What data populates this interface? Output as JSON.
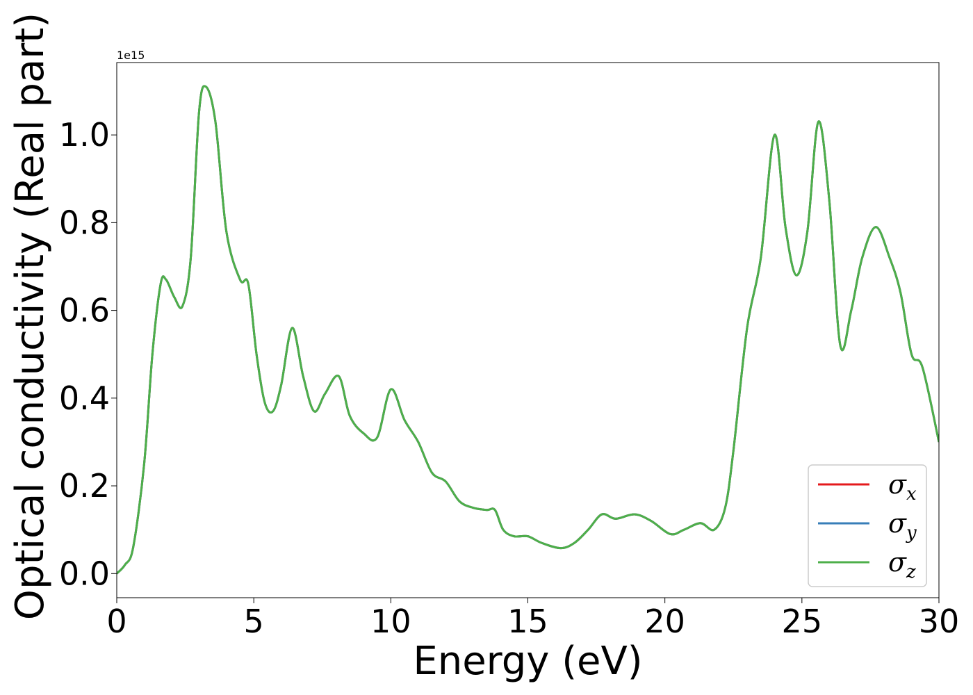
{
  "chart_data": {
    "type": "line",
    "title": "",
    "xlabel": "Energy (eV)",
    "ylabel": "Optical conductivity (Real part)",
    "y_offset_label": "1e15",
    "xlim": [
      0,
      30
    ],
    "ylim": [
      -0.055,
      1.165
    ],
    "x_ticks": [
      0,
      5,
      10,
      15,
      20,
      25,
      30
    ],
    "x_tick_labels": [
      "0",
      "5",
      "10",
      "15",
      "20",
      "25",
      "30"
    ],
    "y_ticks": [
      0.0,
      0.2,
      0.4,
      0.6,
      0.8,
      1.0
    ],
    "y_tick_labels": [
      "0.0",
      "0.2",
      "0.4",
      "0.6",
      "0.8",
      "1.0"
    ],
    "grid": false,
    "legend_position": "lower-right",
    "x": [
      0,
      0.3,
      0.6,
      1.0,
      1.3,
      1.6,
      1.8,
      2.1,
      2.4,
      2.7,
      3.0,
      3.25,
      3.6,
      4.0,
      4.5,
      4.8,
      5.1,
      5.4,
      5.7,
      6.0,
      6.4,
      6.8,
      7.2,
      7.6,
      8.1,
      8.5,
      9.0,
      9.5,
      10.0,
      10.5,
      11.0,
      11.5,
      12.0,
      12.5,
      13.0,
      13.5,
      13.8,
      14.1,
      14.5,
      15.0,
      15.5,
      16.2,
      16.7,
      17.2,
      17.7,
      18.2,
      18.9,
      19.5,
      20.2,
      20.7,
      21.3,
      21.8,
      22.2,
      22.5,
      23.0,
      23.5,
      24.0,
      24.4,
      24.8,
      25.2,
      25.6,
      26.0,
      26.4,
      26.8,
      27.2,
      27.7,
      28.2,
      28.6,
      29.0,
      29.4,
      30.0
    ],
    "series": [
      {
        "name": "σ_x",
        "label_main": "σ",
        "label_sub": "x",
        "color": "#e41a1c",
        "values": [
          0.0,
          0.02,
          0.06,
          0.25,
          0.5,
          0.66,
          0.67,
          0.63,
          0.61,
          0.72,
          1.05,
          1.11,
          1.03,
          0.78,
          0.67,
          0.66,
          0.5,
          0.39,
          0.37,
          0.43,
          0.56,
          0.45,
          0.37,
          0.41,
          0.45,
          0.36,
          0.32,
          0.31,
          0.42,
          0.35,
          0.3,
          0.23,
          0.21,
          0.165,
          0.15,
          0.145,
          0.145,
          0.1,
          0.085,
          0.085,
          0.07,
          0.058,
          0.07,
          0.1,
          0.135,
          0.125,
          0.135,
          0.12,
          0.09,
          0.1,
          0.115,
          0.1,
          0.15,
          0.28,
          0.56,
          0.72,
          1.0,
          0.79,
          0.68,
          0.78,
          1.03,
          0.85,
          0.52,
          0.6,
          0.72,
          0.79,
          0.72,
          0.64,
          0.5,
          0.47,
          0.3
        ]
      },
      {
        "name": "σ_y",
        "label_main": "σ",
        "label_sub": "y",
        "color": "#377eb8",
        "values": [
          0.0,
          0.02,
          0.06,
          0.25,
          0.5,
          0.66,
          0.67,
          0.63,
          0.61,
          0.72,
          1.05,
          1.11,
          1.03,
          0.78,
          0.67,
          0.66,
          0.5,
          0.39,
          0.37,
          0.43,
          0.56,
          0.45,
          0.37,
          0.41,
          0.45,
          0.36,
          0.32,
          0.31,
          0.42,
          0.35,
          0.3,
          0.23,
          0.21,
          0.165,
          0.15,
          0.145,
          0.145,
          0.1,
          0.085,
          0.085,
          0.07,
          0.058,
          0.07,
          0.1,
          0.135,
          0.125,
          0.135,
          0.12,
          0.09,
          0.1,
          0.115,
          0.1,
          0.15,
          0.28,
          0.56,
          0.72,
          1.0,
          0.79,
          0.68,
          0.78,
          1.03,
          0.85,
          0.52,
          0.6,
          0.72,
          0.79,
          0.72,
          0.64,
          0.5,
          0.47,
          0.3
        ]
      },
      {
        "name": "σ_z",
        "label_main": "σ",
        "label_sub": "z",
        "color": "#4daf4a",
        "values": [
          0.0,
          0.02,
          0.06,
          0.25,
          0.5,
          0.66,
          0.67,
          0.63,
          0.61,
          0.72,
          1.05,
          1.11,
          1.03,
          0.78,
          0.67,
          0.66,
          0.5,
          0.39,
          0.37,
          0.43,
          0.56,
          0.45,
          0.37,
          0.41,
          0.45,
          0.36,
          0.32,
          0.31,
          0.42,
          0.35,
          0.3,
          0.23,
          0.21,
          0.165,
          0.15,
          0.145,
          0.145,
          0.1,
          0.085,
          0.085,
          0.07,
          0.058,
          0.07,
          0.1,
          0.135,
          0.125,
          0.135,
          0.12,
          0.09,
          0.1,
          0.115,
          0.1,
          0.15,
          0.28,
          0.56,
          0.72,
          1.0,
          0.79,
          0.68,
          0.78,
          1.03,
          0.85,
          0.52,
          0.6,
          0.72,
          0.79,
          0.72,
          0.64,
          0.5,
          0.47,
          0.3
        ]
      }
    ]
  }
}
